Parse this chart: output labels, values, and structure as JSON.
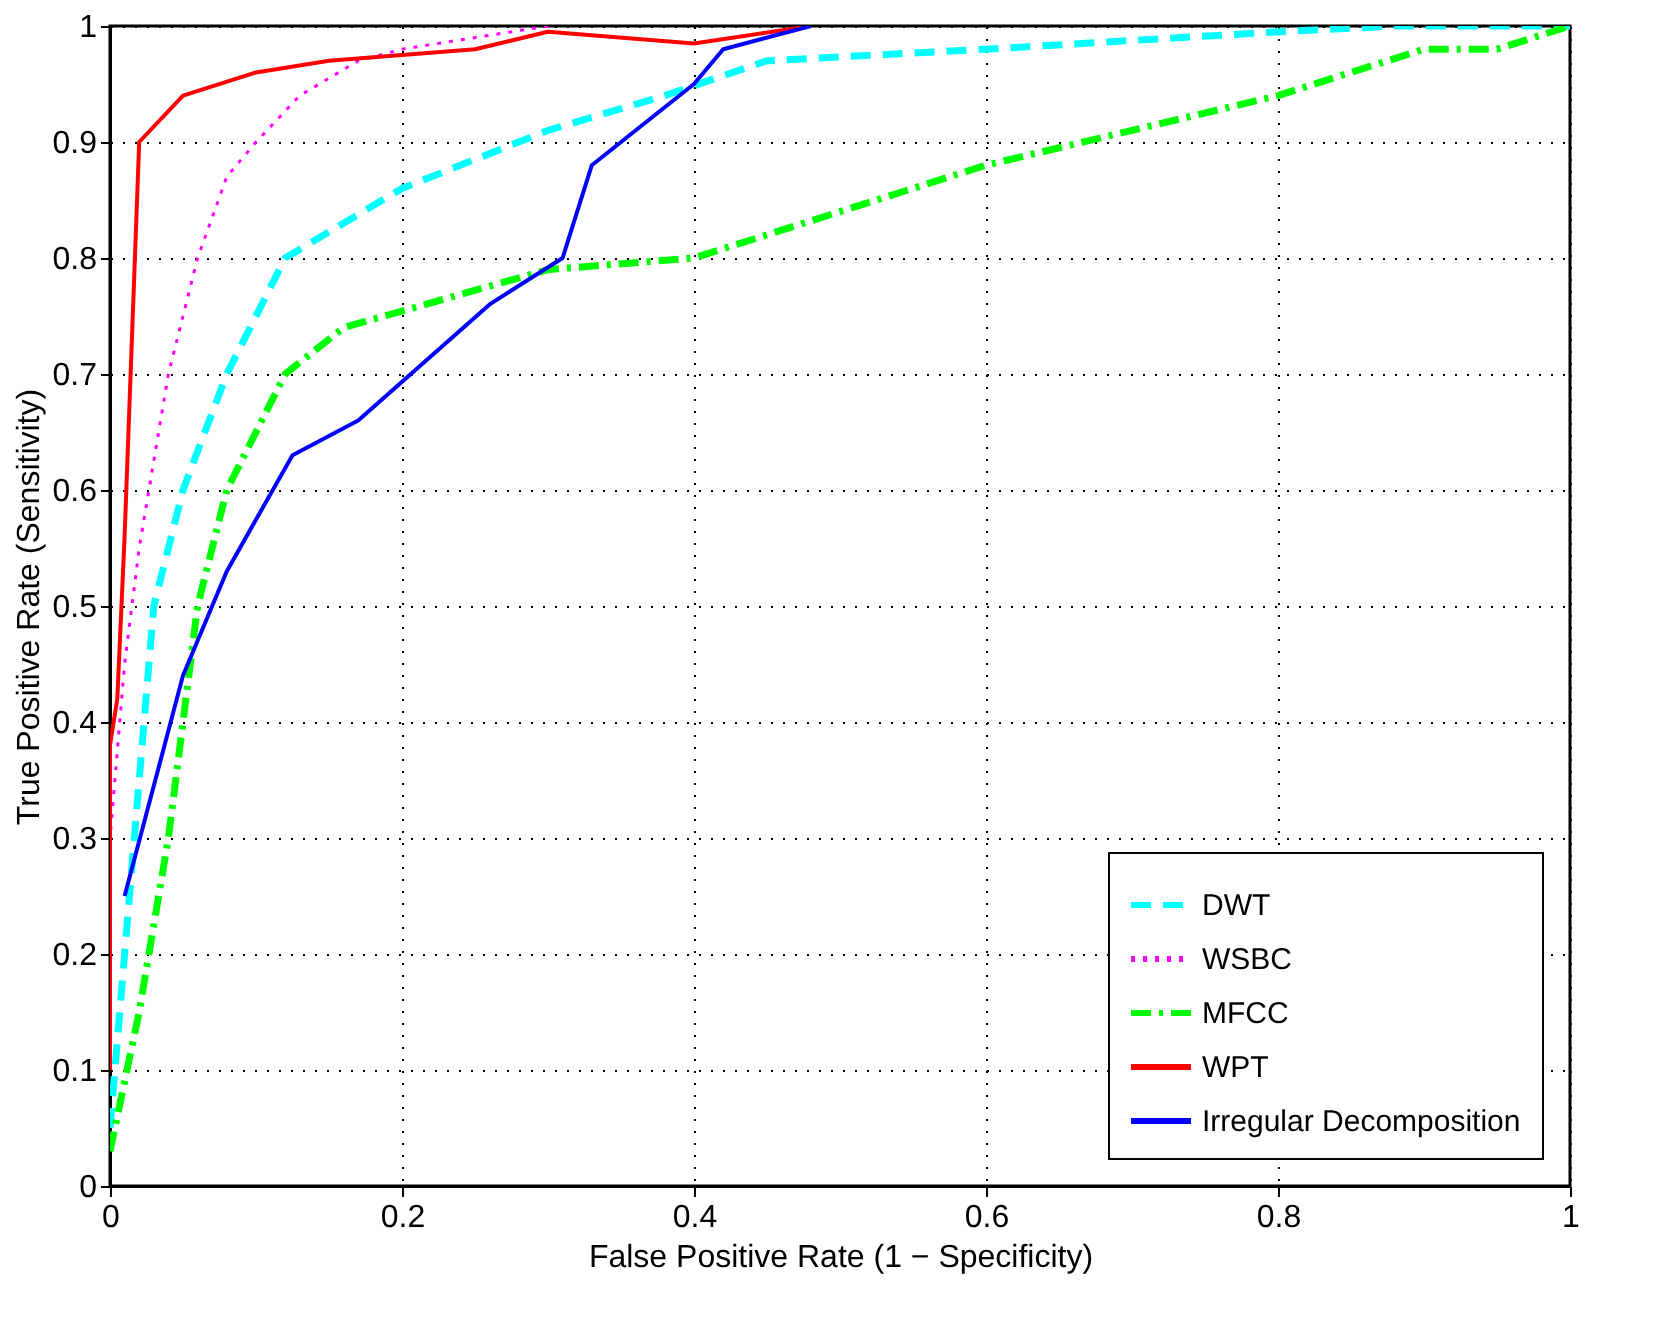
{
  "chart_data": {
    "type": "line",
    "xlabel": "False Positive Rate (1 − Specificity)",
    "ylabel": "True Positive Rate (Sensitivity)",
    "xlim": [
      0,
      1
    ],
    "ylim": [
      0,
      1
    ],
    "xticks": [
      0,
      0.2,
      0.4,
      0.6,
      0.8,
      1
    ],
    "yticks": [
      0,
      0.1,
      0.2,
      0.3,
      0.4,
      0.5,
      0.6,
      0.7,
      0.8,
      0.9,
      1
    ],
    "grid": true,
    "legend": "bottom right",
    "series": [
      {
        "name": "DWT",
        "color": "#00ffff",
        "line_style": "dashed",
        "x": [
          0,
          0.01,
          0.02,
          0.03,
          0.05,
          0.08,
          0.12,
          0.2,
          0.3,
          0.38,
          0.45,
          0.6,
          0.8,
          0.88,
          1
        ],
        "values": [
          0.05,
          0.2,
          0.35,
          0.5,
          0.6,
          0.7,
          0.8,
          0.86,
          0.91,
          0.94,
          0.97,
          0.98,
          0.995,
          1,
          1
        ]
      },
      {
        "name": "WSBC",
        "color": "#ff00ff",
        "line_style": "dotted",
        "x": [
          0,
          0,
          0.01,
          0.02,
          0.04,
          0.06,
          0.08,
          0.1,
          0.13,
          0.17,
          0.2,
          0.3
        ],
        "values": [
          0.1,
          0.3,
          0.45,
          0.55,
          0.7,
          0.8,
          0.87,
          0.9,
          0.94,
          0.97,
          0.98,
          1
        ]
      },
      {
        "name": "MFCC",
        "color": "#00ff00",
        "line_style": "dashdot",
        "x": [
          0,
          0.02,
          0.04,
          0.06,
          0.08,
          0.12,
          0.16,
          0.3,
          0.4,
          0.5,
          0.6,
          0.7,
          0.8,
          0.85,
          0.9,
          0.95,
          1
        ],
        "values": [
          0.03,
          0.15,
          0.3,
          0.5,
          0.6,
          0.7,
          0.74,
          0.79,
          0.8,
          0.84,
          0.88,
          0.91,
          0.94,
          0.96,
          0.98,
          0.98,
          1
        ]
      },
      {
        "name": "WPT",
        "color": "#ff0000",
        "line_style": "solid",
        "x": [
          0,
          0,
          0.005,
          0.01,
          0.02,
          0.05,
          0.1,
          0.15,
          0.2,
          0.25,
          0.3,
          0.4,
          0.48
        ],
        "values": [
          0.1,
          0.38,
          0.42,
          0.56,
          0.9,
          0.94,
          0.96,
          0.97,
          0.975,
          0.98,
          0.995,
          0.985,
          1
        ]
      },
      {
        "name": "Irregular Decomposition",
        "color": "#0000ff",
        "line_style": "solid",
        "x": [
          0.01,
          0.05,
          0.08,
          0.125,
          0.17,
          0.26,
          0.31,
          0.33,
          0.4,
          0.42,
          0.48
        ],
        "values": [
          0.25,
          0.44,
          0.53,
          0.63,
          0.66,
          0.76,
          0.8,
          0.88,
          0.95,
          0.98,
          1
        ]
      }
    ]
  }
}
